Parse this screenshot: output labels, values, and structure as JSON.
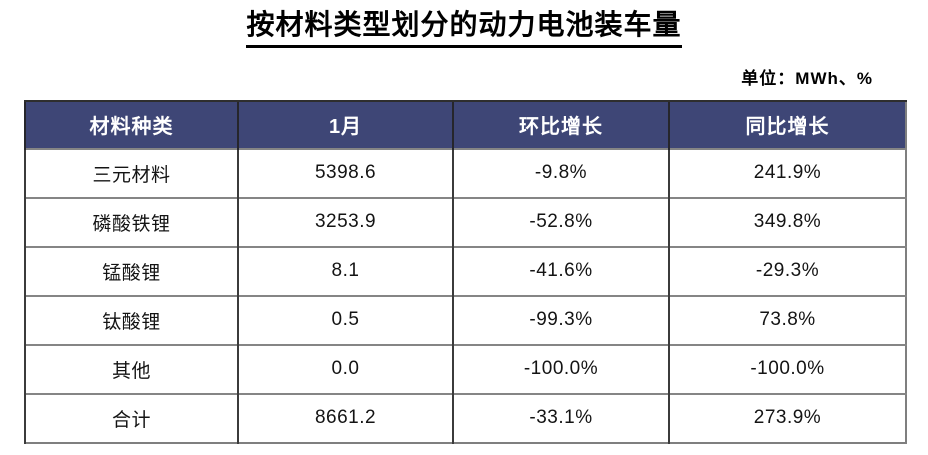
{
  "page": {
    "title": "按材料类型划分的动力电池装车量",
    "unit_label": "单位：MWh、%"
  },
  "table": {
    "columns": [
      "材料种类",
      "1月",
      "环比增长",
      "同比增长"
    ],
    "rows": [
      {
        "material": "三元材料",
        "jan": "5398.6",
        "mom": "-9.8%",
        "yoy": "241.9%"
      },
      {
        "material": "磷酸铁锂",
        "jan": "3253.9",
        "mom": "-52.8%",
        "yoy": "349.8%"
      },
      {
        "material": "锰酸锂",
        "jan": "8.1",
        "mom": "-41.6%",
        "yoy": "-29.3%"
      },
      {
        "material": "钛酸锂",
        "jan": "0.5",
        "mom": "-99.3%",
        "yoy": "73.8%"
      },
      {
        "material": "其他",
        "jan": "0.0",
        "mom": "-100.0%",
        "yoy": "-100.0%"
      },
      {
        "material": "合计",
        "jan": "8661.2",
        "mom": "-33.1%",
        "yoy": "273.9%"
      }
    ]
  },
  "colors": {
    "header_background": "#3E4676",
    "header_text": "#FFFFFF",
    "grid_vertical": "#3B3B3B",
    "grid_horizontal": "#858585"
  },
  "chart_data": {
    "type": "table",
    "title": "按材料类型划分的动力电池装车量",
    "unit": "MWh、%",
    "columns": [
      "材料种类",
      "1月",
      "环比增长",
      "同比增长"
    ],
    "rows": [
      [
        "三元材料",
        5398.6,
        "-9.8%",
        "241.9%"
      ],
      [
        "磷酸铁锂",
        3253.9,
        "-52.8%",
        "349.8%"
      ],
      [
        "锰酸锂",
        8.1,
        "-41.6%",
        "-29.3%"
      ],
      [
        "钛酸锂",
        0.5,
        "-99.3%",
        "73.8%"
      ],
      [
        "其他",
        0.0,
        "-100.0%",
        "-100.0%"
      ],
      [
        "合计",
        8661.2,
        "-33.1%",
        "273.9%"
      ]
    ]
  }
}
